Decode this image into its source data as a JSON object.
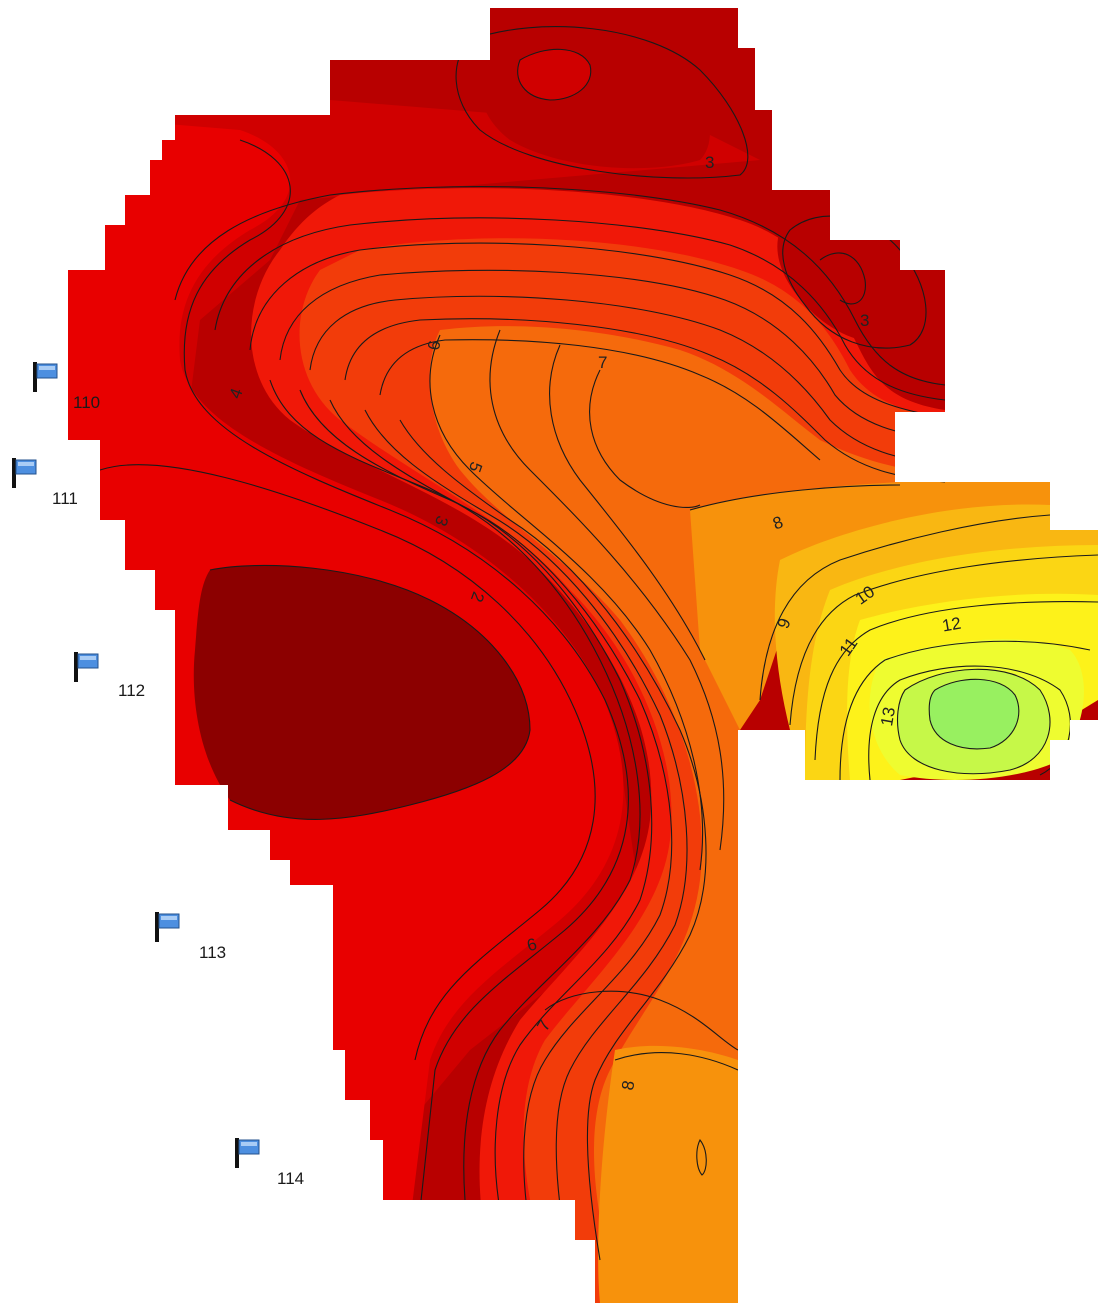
{
  "map": {
    "colors": {
      "level_1": "#8c0000",
      "level_2": "#b80000",
      "level_3": "#d00000",
      "level_4": "#e80000",
      "level_5": "#f01808",
      "level_6": "#f23c0a",
      "level_7": "#f56a0c",
      "level_8": "#f7920c",
      "level_9": "#f9b712",
      "level_10": "#fbd614",
      "level_11": "#fdf21a",
      "level_12": "#eefc30",
      "level_13": "#c6f848",
      "level_14": "#98f060"
    },
    "markers": [
      {
        "label": "110",
        "icon": "flag-icon"
      },
      {
        "label": "111",
        "icon": "flag-icon"
      },
      {
        "label": "112",
        "icon": "flag-icon"
      },
      {
        "label": "113",
        "icon": "flag-icon"
      },
      {
        "label": "114",
        "icon": "flag-icon"
      }
    ],
    "contour_labels": [
      "3",
      "3",
      "4",
      "6",
      "7",
      "5",
      "3",
      "2",
      "8",
      "9",
      "10",
      "11",
      "12",
      "13",
      "6",
      "7",
      "8"
    ]
  }
}
